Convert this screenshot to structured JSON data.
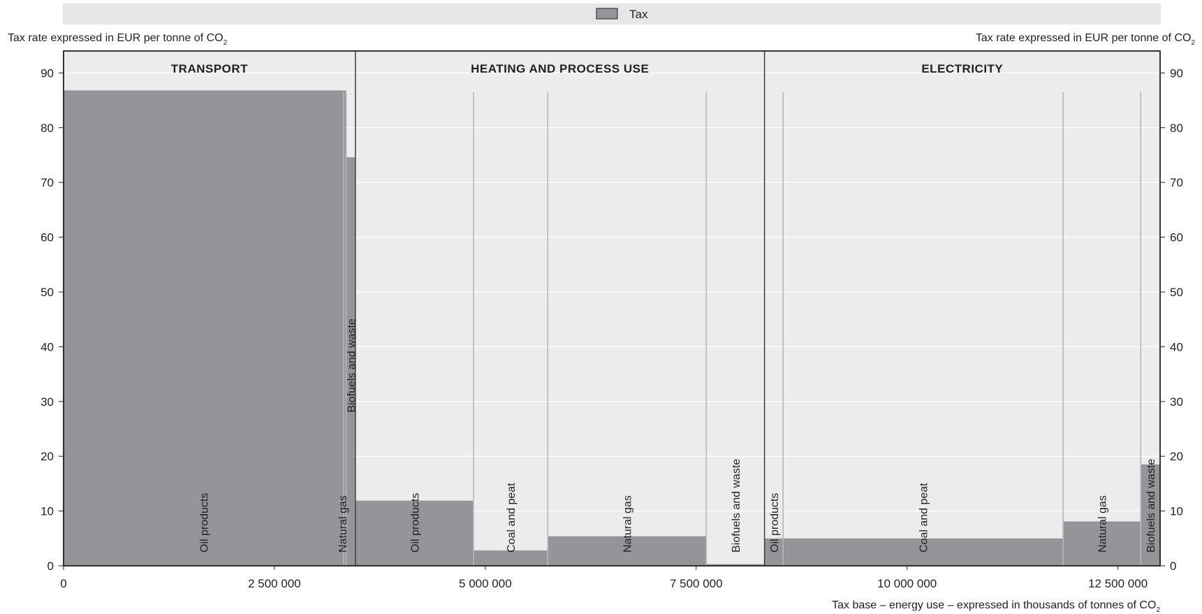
{
  "legend": {
    "label": "Tax",
    "swatch_color": "#939598"
  },
  "colors": {
    "bar": "#939598",
    "plot_bg": "#ececec",
    "divider": "#b7b8ba",
    "section_line": "#3c3c3c",
    "legend_bg": "#e6e7e8"
  },
  "chart_data": {
    "type": "bar",
    "variable_width": true,
    "ylabel_left": "Tax rate expressed in EUR per tonne of CO",
    "ylabel_right": "Tax rate expressed in EUR per tonne of CO",
    "ylabel_sub": "2",
    "xlabel": "Tax base – energy use – expressed in thousands of tonnes of CO",
    "xlabel_sub": "2",
    "ylim": [
      0,
      94
    ],
    "yticks": [
      0,
      10,
      20,
      30,
      40,
      50,
      60,
      70,
      80,
      90
    ],
    "xlim": [
      0,
      13000000
    ],
    "xticks": [
      {
        "value": 0,
        "label": "0"
      },
      {
        "value": 2500000,
        "label": "2 500 000"
      },
      {
        "value": 5000000,
        "label": "5 000 000"
      },
      {
        "value": 7500000,
        "label": "7 500 000"
      },
      {
        "value": 10000000,
        "label": "10 000 000"
      },
      {
        "value": 12500000,
        "label": "12 500 000"
      }
    ],
    "sections": [
      {
        "label": "TRANSPORT",
        "x0": 0,
        "x1": 3460000
      },
      {
        "label": "HEATING AND PROCESS USE",
        "x0": 3460000,
        "x1": 8310000
      },
      {
        "label": "ELECTRICITY",
        "x0": 8310000,
        "x1": 13000000
      }
    ],
    "bars": [
      {
        "section": "TRANSPORT",
        "fuel": "Oil products",
        "x0": 0,
        "x1": 3320000,
        "value": 86.8
      },
      {
        "section": "TRANSPORT",
        "fuel": "Natural gas",
        "x0": 3320000,
        "x1": 3350000,
        "value": 86.8
      },
      {
        "section": "TRANSPORT",
        "fuel": "Biofuels and waste",
        "x0": 3350000,
        "x1": 3460000,
        "value": 74.6
      },
      {
        "section": "HEATING AND PROCESS USE",
        "fuel": "Oil products",
        "x0": 3460000,
        "x1": 4860000,
        "value": 11.9
      },
      {
        "section": "HEATING AND PROCESS USE",
        "fuel": "Coal and peat",
        "x0": 4860000,
        "x1": 5740000,
        "value": 2.8
      },
      {
        "section": "HEATING AND PROCESS USE",
        "fuel": "Natural gas",
        "x0": 5740000,
        "x1": 7620000,
        "value": 5.4
      },
      {
        "section": "HEATING AND PROCESS USE",
        "fuel": "Biofuels and waste",
        "x0": 7620000,
        "x1": 8310000,
        "value": 0.3
      },
      {
        "section": "ELECTRICITY",
        "fuel": "Oil products",
        "x0": 8310000,
        "x1": 8530000,
        "value": 5.0
      },
      {
        "section": "ELECTRICITY",
        "fuel": "Coal and peat",
        "x0": 8530000,
        "x1": 11850000,
        "value": 5.0
      },
      {
        "section": "ELECTRICITY",
        "fuel": "Natural gas",
        "x0": 11850000,
        "x1": 12770000,
        "value": 8.1
      },
      {
        "section": "ELECTRICITY",
        "fuel": "Biofuels and waste",
        "x0": 12770000,
        "x1": 13000000,
        "value": 18.5
      }
    ]
  }
}
